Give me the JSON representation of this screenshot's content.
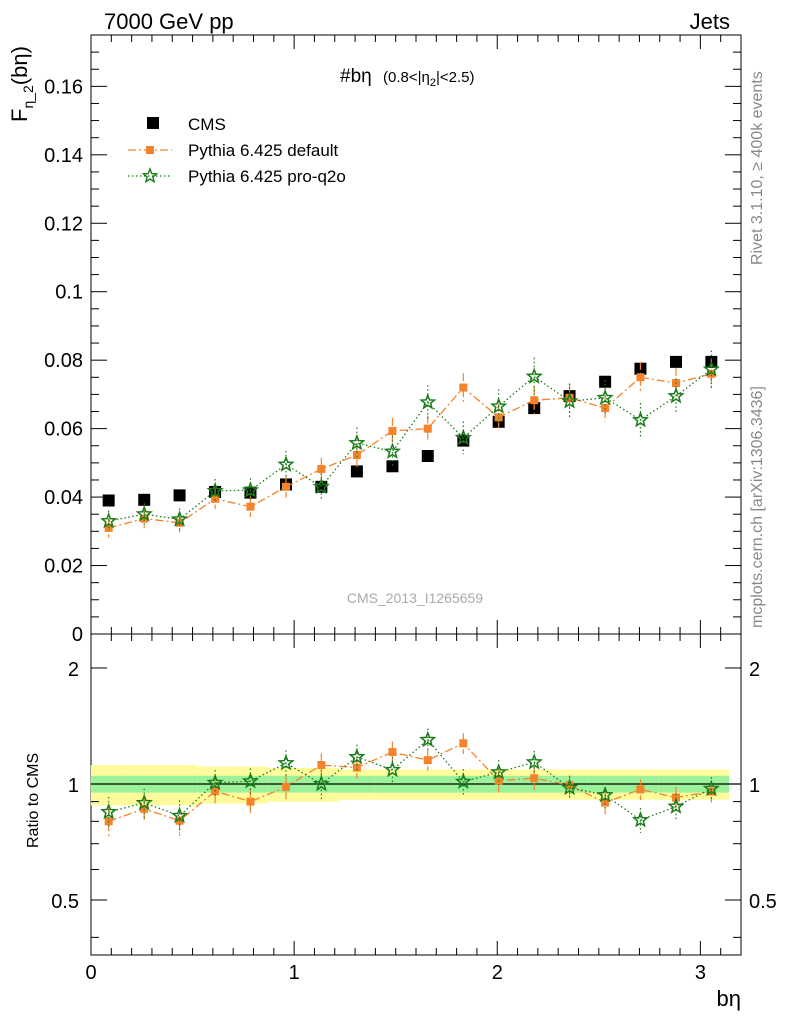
{
  "header": {
    "left": "7000 GeV pp",
    "right": "Jets"
  },
  "side_labels": {
    "rivet": "Rivet 3.1.10, ≥ 400k events",
    "mcplots": "mcplots.cern.ch [arXiv:1306.3436]"
  },
  "plot_title": {
    "main": "#bη",
    "sub": "(0.8<|η",
    "sub_sub": "2",
    "sub_end": "|<2.5)"
  },
  "watermark": "CMS_2013_I1265659",
  "ylabel_main": {
    "prefix": "F",
    "sub": "η_2",
    "suffix": "(bη)"
  },
  "ylabel_ratio": "Ratio to CMS",
  "xlabel": "bη",
  "legend": [
    {
      "label": "CMS",
      "color": "#000000",
      "marker": "square"
    },
    {
      "label": "Pythia 6.425 default",
      "color": "#f5832b",
      "marker": "square-small",
      "dash": "dashdot"
    },
    {
      "label": "Pythia 6.425 pro-q2o",
      "color": "#1a7d1a",
      "marker": "star",
      "dash": "dotted"
    }
  ],
  "chart_data": {
    "type": "scatter",
    "x": [
      0.087,
      0.262,
      0.436,
      0.611,
      0.785,
      0.96,
      1.134,
      1.309,
      1.484,
      1.658,
      1.833,
      2.007,
      2.182,
      2.356,
      2.531,
      2.705,
      2.88,
      3.054
    ],
    "main": {
      "xlim": [
        0,
        3.2
      ],
      "ylim": [
        0,
        0.175
      ],
      "yticks": [
        0,
        0.02,
        0.04,
        0.06,
        0.08,
        0.1,
        0.12,
        0.14,
        0.16
      ],
      "ytick_labels": [
        "0",
        "0.02",
        "0.04",
        "0.06",
        "0.08",
        "0.1",
        "0.12",
        "0.14",
        "0.16"
      ],
      "series": [
        {
          "name": "CMS",
          "values": [
            0.039,
            0.0392,
            0.0405,
            0.0415,
            0.0413,
            0.0437,
            0.043,
            0.0475,
            0.049,
            0.052,
            0.0565,
            0.062,
            0.066,
            0.0695,
            0.0737,
            0.0775,
            0.0795,
            0.0795
          ],
          "errors": [
            0.0005,
            0.0005,
            0.0005,
            0.0005,
            0.0005,
            0.0005,
            0.0005,
            0.0005,
            0.0005,
            0.0005,
            0.001,
            0.0012,
            0.0015,
            0.0015,
            0.001,
            0.001,
            0.001,
            0.001
          ]
        },
        {
          "name": "Pythia 6.425 default",
          "values": [
            0.031,
            0.0337,
            0.0325,
            0.0395,
            0.0372,
            0.043,
            0.0482,
            0.0523,
            0.0593,
            0.06,
            0.072,
            0.0633,
            0.0683,
            0.069,
            0.066,
            0.075,
            0.0733,
            0.076
          ],
          "errors": [
            0.0028,
            0.0028,
            0.0028,
            0.003,
            0.003,
            0.0032,
            0.0033,
            0.0035,
            0.0038,
            0.0038,
            0.0042,
            0.004,
            0.0042,
            0.0042,
            0.004,
            0.0045,
            0.0045,
            0.0045
          ]
        },
        {
          "name": "Pythia 6.425 pro-q2o",
          "values": [
            0.033,
            0.035,
            0.0335,
            0.0418,
            0.042,
            0.0495,
            0.043,
            0.0558,
            0.0533,
            0.0677,
            0.0573,
            0.0665,
            0.0752,
            0.068,
            0.069,
            0.0625,
            0.0695,
            0.0773
          ],
          "errors": [
            0.003,
            0.0032,
            0.0032,
            0.0035,
            0.0035,
            0.004,
            0.004,
            0.0045,
            0.0045,
            0.005,
            0.0048,
            0.005,
            0.0055,
            0.0052,
            0.0052,
            0.005,
            0.0052,
            0.0055
          ]
        }
      ]
    },
    "ratio": {
      "ylim": [
        0.36,
        2.45
      ],
      "log_scale": true,
      "yticks": [
        0.5,
        1,
        2
      ],
      "ytick_labels": [
        "0.5",
        "1",
        "2"
      ],
      "band_inner": [
        0.05,
        0.05,
        0.05,
        0.05,
        0.05,
        0.05,
        0.05,
        0.05,
        0.05,
        0.05,
        0.05,
        0.05,
        0.05,
        0.05,
        0.05,
        0.05,
        0.05,
        0.05
      ],
      "band_outer": [
        0.12,
        0.12,
        0.12,
        0.11,
        0.11,
        0.1,
        0.1,
        0.09,
        0.09,
        0.09,
        0.09,
        0.09,
        0.09,
        0.09,
        0.09,
        0.09,
        0.09,
        0.09
      ],
      "series": [
        {
          "name": "Pythia 6.425 default",
          "values": [
            0.8,
            0.862,
            0.803,
            0.958,
            0.9,
            0.983,
            1.12,
            1.103,
            1.21,
            1.153,
            1.275,
            1.02,
            1.035,
            0.993,
            0.895,
            0.968,
            0.922,
            0.956
          ],
          "errors": [
            0.07,
            0.07,
            0.07,
            0.07,
            0.07,
            0.07,
            0.08,
            0.07,
            0.08,
            0.07,
            0.08,
            0.07,
            0.07,
            0.06,
            0.06,
            0.06,
            0.06,
            0.06
          ]
        },
        {
          "name": "Pythia 6.425 pro-q2o",
          "values": [
            0.846,
            0.893,
            0.827,
            1.007,
            1.017,
            1.133,
            1.0,
            1.175,
            1.088,
            1.302,
            1.014,
            1.073,
            1.139,
            0.978,
            0.936,
            0.806,
            0.874,
            0.972
          ],
          "errors": [
            0.08,
            0.08,
            0.08,
            0.08,
            0.08,
            0.09,
            0.09,
            0.09,
            0.09,
            0.09,
            0.08,
            0.08,
            0.08,
            0.07,
            0.07,
            0.06,
            0.07,
            0.07
          ]
        }
      ]
    },
    "xticks": [
      0,
      1,
      2,
      3
    ],
    "xtick_labels": [
      "0",
      "1",
      "2",
      "3"
    ]
  }
}
